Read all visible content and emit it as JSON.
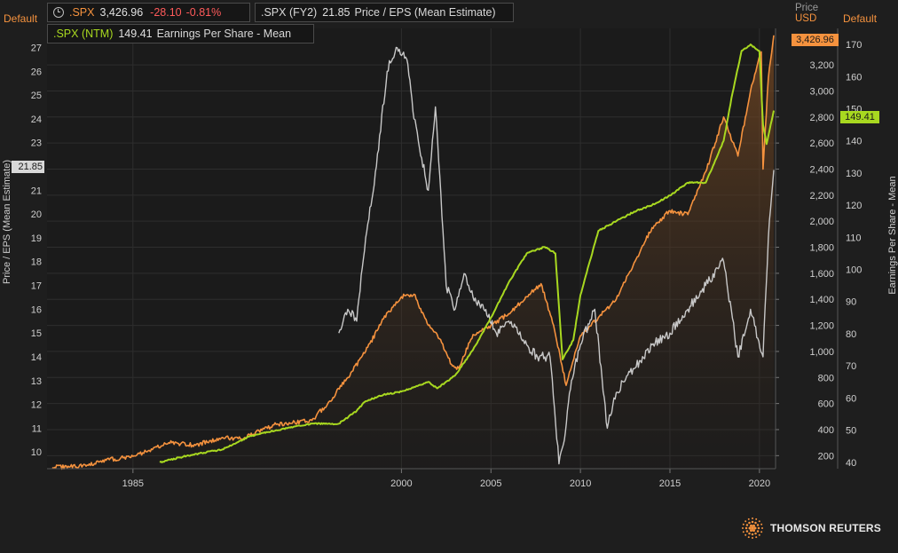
{
  "header": {
    "left_axis_tag": "Default",
    "right_axis_tag": "Default",
    "price_label": "Price",
    "currency_label": "USD"
  },
  "legend": {
    "spx": {
      "symbol": ".SPX",
      "value": "3,426.96",
      "change": "-28.10",
      "change_pct": "-0.81%"
    },
    "pe": {
      "symbol": ".SPX (FY2)",
      "value": "21.85",
      "description": "Price / EPS (Mean Estimate)"
    },
    "eps": {
      "symbol": ".SPX (NTM)",
      "value": "149.41",
      "description": "Earnings Per Share - Mean"
    }
  },
  "axes": {
    "left_title": "Price / EPS (Mean Estimate)",
    "right_title": "Earnings Per Share - Mean",
    "left_ticks": [
      "10",
      "11",
      "12",
      "13",
      "14",
      "15",
      "16",
      "17",
      "18",
      "19",
      "20",
      "21",
      "22",
      "23",
      "24",
      "25",
      "26",
      "27"
    ],
    "price_ticks": [
      "200",
      "400",
      "600",
      "800",
      "1,000",
      "1,200",
      "1,400",
      "1,600",
      "1,800",
      "2,000",
      "2,200",
      "2,400",
      "2,600",
      "2,800",
      "3,000",
      "3,200"
    ],
    "eps_ticks": [
      "40",
      "50",
      "60",
      "70",
      "80",
      "90",
      "100",
      "110",
      "120",
      "130",
      "140",
      "150",
      "160",
      "170"
    ],
    "x_ticks": [
      "1985",
      "2000",
      "2005",
      "2010",
      "2015",
      "2020"
    ]
  },
  "last_value_labels": {
    "pe": "21.85",
    "price": "3,426.96",
    "eps": "149.41"
  },
  "colors": {
    "price": "#f5923e",
    "pe": "#c8c8c8",
    "eps": "#a8d820",
    "negative": "#ff5a5a",
    "background": "#1e1e1e"
  },
  "branding": {
    "name": "THOMSON REUTERS"
  },
  "chart_data": {
    "type": "line",
    "x_ticks": [
      "1985",
      "2000",
      "2005",
      "2010",
      "2015",
      "2020"
    ],
    "series": [
      {
        "name": ".SPX",
        "axis": "price",
        "x": [
          1980.5,
          1981.5,
          1982.5,
          1983.5,
          1985,
          1987,
          1988.5,
          1990,
          1991,
          1993,
          1995,
          1996,
          1997,
          1998,
          1999,
          2000,
          2000.7,
          2001.5,
          2002,
          2002.8,
          2003.2,
          2004,
          2005,
          2006,
          2007,
          2007.8,
          2008.5,
          2009.2,
          2010,
          2011,
          2012,
          2013,
          2014,
          2015,
          2016,
          2017,
          2018,
          2018.8,
          2019.5,
          2020.1,
          2020.2,
          2020.5,
          2020.8
        ],
        "y": [
          110,
          115,
          125,
          165,
          195,
          300,
          280,
          340,
          330,
          440,
          470,
          620,
          800,
          1000,
          1250,
          1420,
          1440,
          1200,
          1130,
          900,
          870,
          1130,
          1200,
          1290,
          1420,
          1520,
          1200,
          740,
          1120,
          1260,
          1400,
          1680,
          1950,
          2080,
          2050,
          2380,
          2800,
          2500,
          3000,
          3300,
          2400,
          3100,
          3426.96
        ]
      },
      {
        "name": ".SPX (FY2)",
        "axis": "pe",
        "x": [
          1996.5,
          1997,
          1997.5,
          1998,
          1998.6,
          1999.2,
          1999.7,
          2000.3,
          2000.7,
          2001.5,
          2001.9,
          2002.5,
          2003,
          2003.5,
          2004,
          2004.6,
          2005.3,
          2006,
          2006.5,
          2007,
          2007.6,
          2008.3,
          2008.8,
          2009.1,
          2009.5,
          2010,
          2010.8,
          2011.5,
          2012,
          2013,
          2014,
          2015,
          2016,
          2017,
          2018,
          2018.8,
          2019.5,
          2020.2,
          2020.5,
          2020.8
        ],
        "y": [
          15,
          16,
          15.5,
          19,
          22,
          26,
          27,
          26.5,
          24,
          21,
          24.5,
          17,
          16,
          17.5,
          16.5,
          16,
          15,
          15.5,
          15,
          14.5,
          14,
          14,
          9.5,
          10.5,
          13,
          14.5,
          16,
          11,
          12.5,
          13.5,
          14.5,
          15,
          16,
          17,
          18,
          14,
          16,
          14,
          19,
          21.85
        ]
      },
      {
        "name": ".SPX (NTM)",
        "axis": "eps",
        "x": [
          1986.5,
          1988,
          1990,
          1991.5,
          1993,
          1995,
          1996.5,
          1997.5,
          1998,
          1999,
          2000,
          2001.5,
          2002,
          2003,
          2004,
          2005,
          2006,
          2007,
          2008,
          2008.6,
          2009,
          2009.6,
          2010,
          2011,
          2012,
          2013,
          2014,
          2015,
          2016,
          2017,
          2018,
          2018.5,
          2019,
          2019.5,
          2020,
          2020.2,
          2020.4,
          2020.8
        ],
        "y": [
          40,
          42,
          44,
          48,
          50,
          52,
          52,
          56,
          59,
          61,
          62,
          65,
          63,
          67,
          75,
          85,
          96,
          105,
          107,
          105,
          72,
          78,
          92,
          112,
          115,
          118,
          120,
          123,
          127,
          127,
          140,
          155,
          168,
          170,
          168,
          145,
          139,
          149.41
        ]
      }
    ],
    "y_axes": {
      "pe": {
        "title": "Price / EPS (Mean Estimate)",
        "range": [
          9.3,
          27.8
        ]
      },
      "price": {
        "range": [
          100,
          3480
        ]
      },
      "eps": {
        "title": "Earnings Per Share - Mean",
        "range": [
          38,
          175
        ]
      }
    }
  }
}
